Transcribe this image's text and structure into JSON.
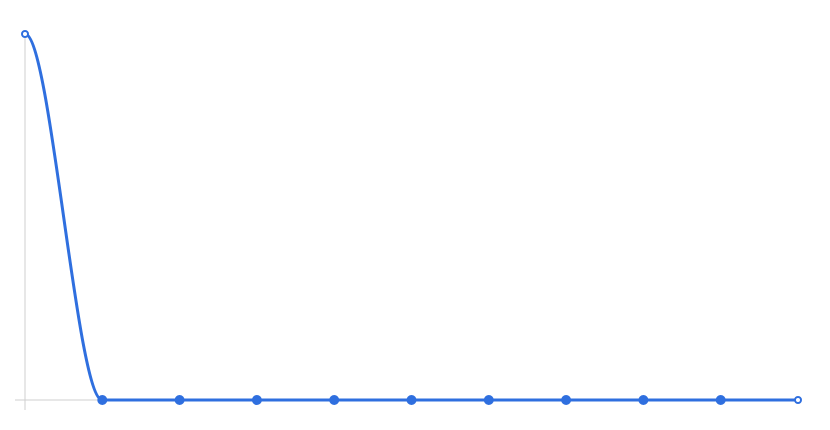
{
  "chart_data": {
    "type": "line",
    "title": "",
    "xlabel": "",
    "ylabel": "",
    "x": [
      0,
      1,
      2,
      3,
      4,
      5,
      6,
      7,
      8,
      9,
      10
    ],
    "series": [
      {
        "values": [
          1,
          0,
          0,
          0,
          0,
          0,
          0,
          0,
          0,
          0,
          0
        ],
        "color": "#2f6fdf"
      }
    ],
    "xlim": [
      0,
      10
    ],
    "ylim": [
      0,
      1
    ],
    "grid": false,
    "legend": "none",
    "curve": "smooth",
    "hollow_endpoints": true
  }
}
